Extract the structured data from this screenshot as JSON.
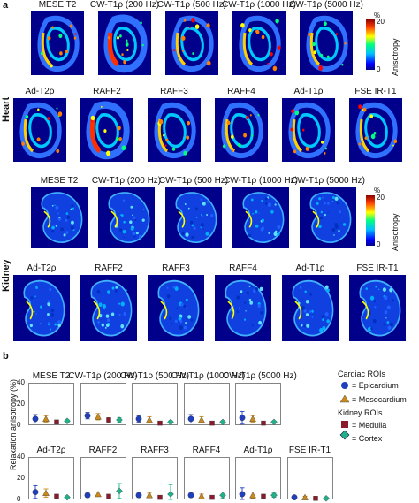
{
  "panel_a": {
    "letter": "a",
    "heart_label": "Heart",
    "kidney_label": "Kidney",
    "heart_row1": [
      "MESE T2",
      "CW-T1ρ (200 Hz)",
      "CW-T1ρ (500 Hz)",
      "CW-T1ρ (1000 Hz)",
      "CW-T1ρ (5000 Hz)"
    ],
    "heart_row2": [
      "Ad-T2ρ",
      "RAFF2",
      "RAFF3",
      "RAFF4",
      "Ad-T1ρ",
      "FSE IR-T1"
    ],
    "kidney_row1": [
      "MESE T2",
      "CW-T1ρ (200 Hz)",
      "CW-T1ρ (500 Hz)",
      "CW-T1ρ (1000 Hz)",
      "CW-T1ρ (5000 Hz)"
    ],
    "kidney_row2": [
      "Ad-T2ρ",
      "RAFF2",
      "RAFF3",
      "RAFF4",
      "Ad-T1ρ",
      "FSE IR-T1"
    ],
    "colorbar": {
      "unit": "%",
      "max": "20",
      "min": "0",
      "title": "Anisotropy"
    },
    "colors": {
      "background": "#00008b",
      "low": "#0000ff",
      "mid": "#00ff80",
      "high": "#ff0000"
    }
  },
  "panel_b": {
    "letter": "b",
    "ylabel": "Relaxation anisotropy (%)",
    "yticks": [
      "40",
      "20",
      "0"
    ],
    "legend": {
      "cardiac_title": "Cardiac ROIs",
      "kidney_title": "Kidney ROIs",
      "items": [
        {
          "label": "= Epicardium",
          "color": "#1f3fbf",
          "shape": "circle"
        },
        {
          "label": "= Mesocardium",
          "color": "#c98a1a",
          "shape": "triangle"
        },
        {
          "label": "= Medulla",
          "color": "#8b1a2a",
          "shape": "square"
        },
        {
          "label": "= Cortex",
          "color": "#20b08a",
          "shape": "diamond"
        }
      ]
    },
    "chart_data": {
      "type": "scatter",
      "ylabel": "Relaxation anisotropy (%)",
      "ylim": [
        0,
        40
      ],
      "series_names": [
        "Epicardium",
        "Mesocardium",
        "Medulla",
        "Cortex"
      ],
      "subplots": [
        {
          "title": "MESE T2",
          "values": [
            6,
            6,
            3,
            4
          ],
          "errors": [
            4,
            3,
            1,
            1
          ]
        },
        {
          "title": "CW-T1ρ (200 Hz)",
          "values": [
            9,
            8,
            5,
            5
          ],
          "errors": [
            3,
            3,
            2,
            2
          ]
        },
        {
          "title": "CW-T1ρ (500 Hz)",
          "values": [
            6,
            5,
            2,
            3
          ],
          "errors": [
            3,
            3,
            1,
            1
          ]
        },
        {
          "title": "CW-T1ρ (1000 Hz)",
          "values": [
            6,
            5,
            2,
            3
          ],
          "errors": [
            4,
            3,
            1,
            1
          ]
        },
        {
          "title": "CW-T1ρ (5000 Hz)",
          "values": [
            7,
            6,
            2,
            3
          ],
          "errors": [
            6,
            3,
            1,
            1
          ]
        },
        {
          "title": "Ad-T2ρ",
          "values": [
            7,
            6,
            3,
            2
          ],
          "errors": [
            6,
            4,
            1,
            1
          ]
        },
        {
          "title": "RAFF2",
          "values": [
            4,
            5,
            3,
            8
          ],
          "errors": [
            2,
            2,
            1,
            7
          ]
        },
        {
          "title": "RAFF3",
          "values": [
            4,
            4,
            2,
            5
          ],
          "errors": [
            2,
            2,
            1,
            9
          ]
        },
        {
          "title": "RAFF4",
          "values": [
            4,
            3,
            2,
            4
          ],
          "errors": [
            2,
            2,
            1,
            3
          ]
        },
        {
          "title": "Ad-T1ρ",
          "values": [
            5,
            4,
            3,
            4
          ],
          "errors": [
            6,
            3,
            1,
            2
          ]
        },
        {
          "title": "FSE IR-T1",
          "values": [
            2,
            2,
            1,
            1
          ],
          "errors": [
            1,
            1,
            1,
            1
          ]
        }
      ]
    }
  }
}
